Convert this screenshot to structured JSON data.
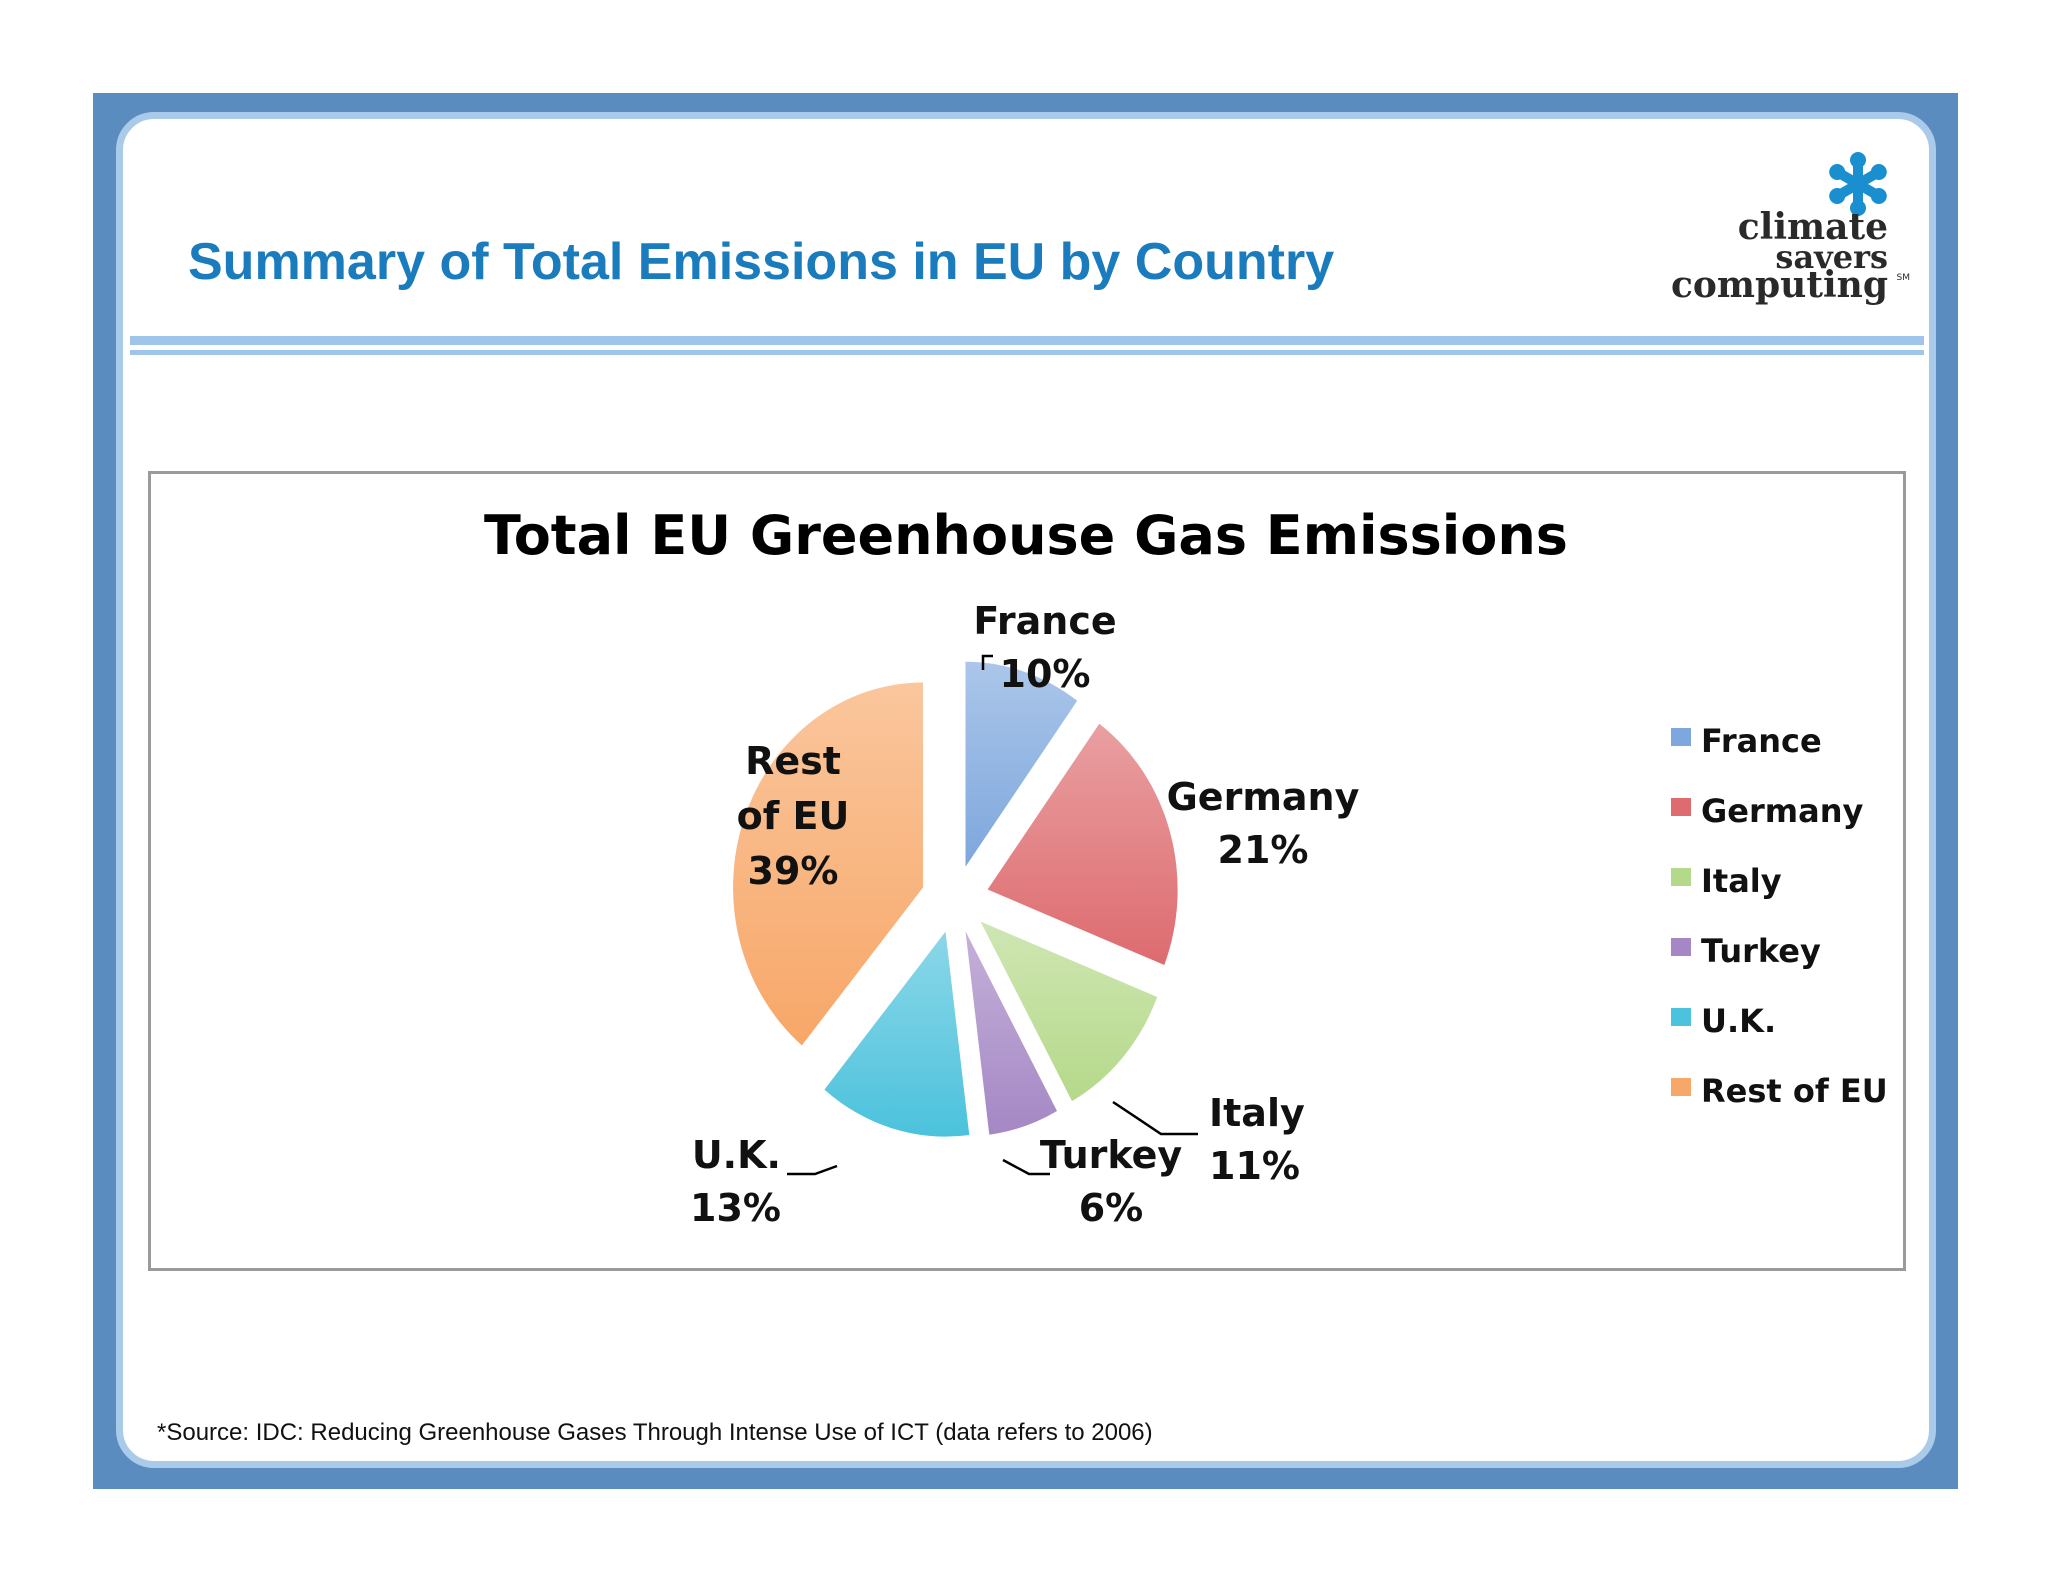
{
  "slide": {
    "title": "Summary of Total Emissions in EU by Country",
    "source_note": "*Source: IDC: Reducing Greenhouse Gases Through Intense Use of ICT (data refers to 2006)"
  },
  "logo": {
    "line1": "climate",
    "line2": "savers",
    "line3": "computing",
    "mark": "SM",
    "icon": "asterisk-flower-icon",
    "color": "#1a8fd0"
  },
  "colors": {
    "frame": "#5b8cc0",
    "title": "#1a7bbd"
  },
  "chart_data": {
    "type": "pie",
    "title": "Total EU Greenhouse Gas Emissions",
    "legend_position": "right",
    "exploded": true,
    "slices": [
      {
        "label": "France",
        "value": 10,
        "display": "10%",
        "color": "#7ea7dd"
      },
      {
        "label": "Germany",
        "value": 21,
        "display": "21%",
        "color": "#dd6b6f"
      },
      {
        "label": "Italy",
        "value": 11,
        "display": "11%",
        "color": "#b5d98a"
      },
      {
        "label": "Turkey",
        "value": 6,
        "display": "6%",
        "color": "#a487c4"
      },
      {
        "label": "U.K.",
        "value": 13,
        "display": "13%",
        "color": "#4cc2dc"
      },
      {
        "label": "Rest of EU",
        "value": 39,
        "display": "39%",
        "color": "#f7a768"
      }
    ],
    "slice_labels": {
      "France": [
        "France",
        "10%"
      ],
      "Germany": [
        "Germany",
        "21%"
      ],
      "Italy": [
        "Italy",
        "11%"
      ],
      "Turkey": [
        "Turkey",
        "6%"
      ],
      "U.K.": [
        "U.K.",
        "13%"
      ],
      "Rest of EU": [
        "Rest",
        "of EU",
        "39%"
      ]
    }
  }
}
